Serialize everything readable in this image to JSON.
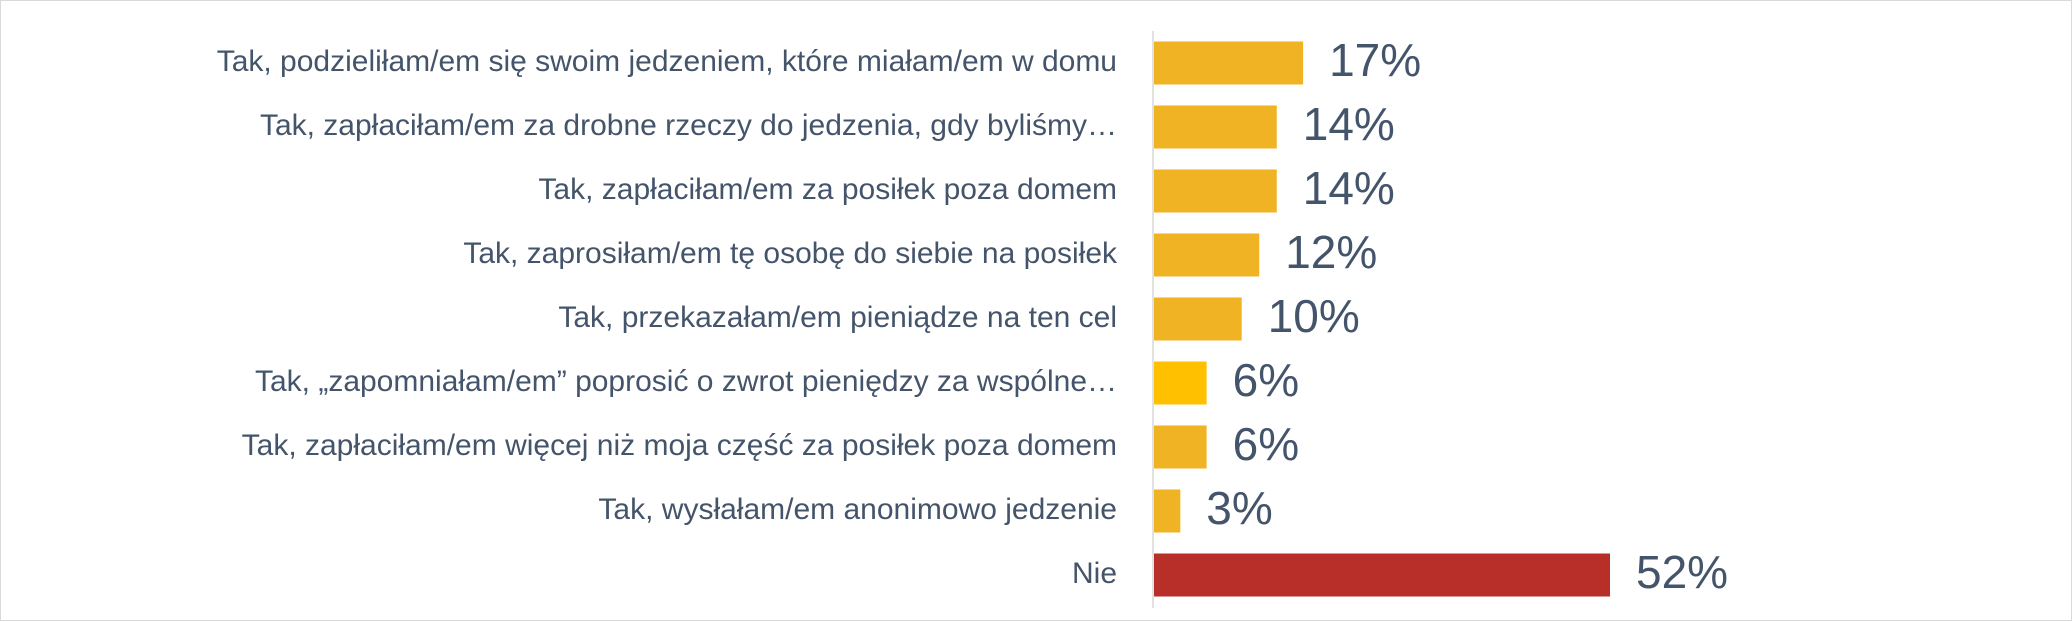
{
  "chart_data": {
    "type": "bar",
    "orientation": "horizontal",
    "title": "",
    "xlabel": "",
    "ylabel": "",
    "xlim": [
      0,
      60
    ],
    "grid": false,
    "legend": "none",
    "categories": [
      "Tak, podzieliłam/em się swoim jedzeniem, które miałam/em w domu",
      "Tak, zapłaciłam/em za drobne rzeczy do jedzenia, gdy byliśmy…",
      "Tak, zapłaciłam/em za posiłek poza domem",
      "Tak, zaprosiłam/em tę osobę do siebie na posiłek",
      "Tak, przekazałam/em pieniądze na ten cel",
      "Tak, „zapomniałam/em” poprosić o zwrot pieniędzy za wspólne…",
      "Tak, zapłaciłam/em więcej niż moja część za posiłek poza domem",
      "Tak, wysłałam/em anonimowo jedzenie",
      "Nie"
    ],
    "values": [
      17,
      14,
      14,
      12,
      10,
      6,
      6,
      3,
      52
    ],
    "value_labels": [
      "17%",
      "14%",
      "14%",
      "12%",
      "10%",
      "6%",
      "6%",
      "3%",
      "52%"
    ],
    "colors": [
      "#f0b323",
      "#f0b323",
      "#f0b323",
      "#f0b323",
      "#f0b323",
      "#ffc000",
      "#f0b323",
      "#f0b323",
      "#b72f28"
    ],
    "axis_color": "#d9d9d9",
    "text_color": "#44546a"
  }
}
